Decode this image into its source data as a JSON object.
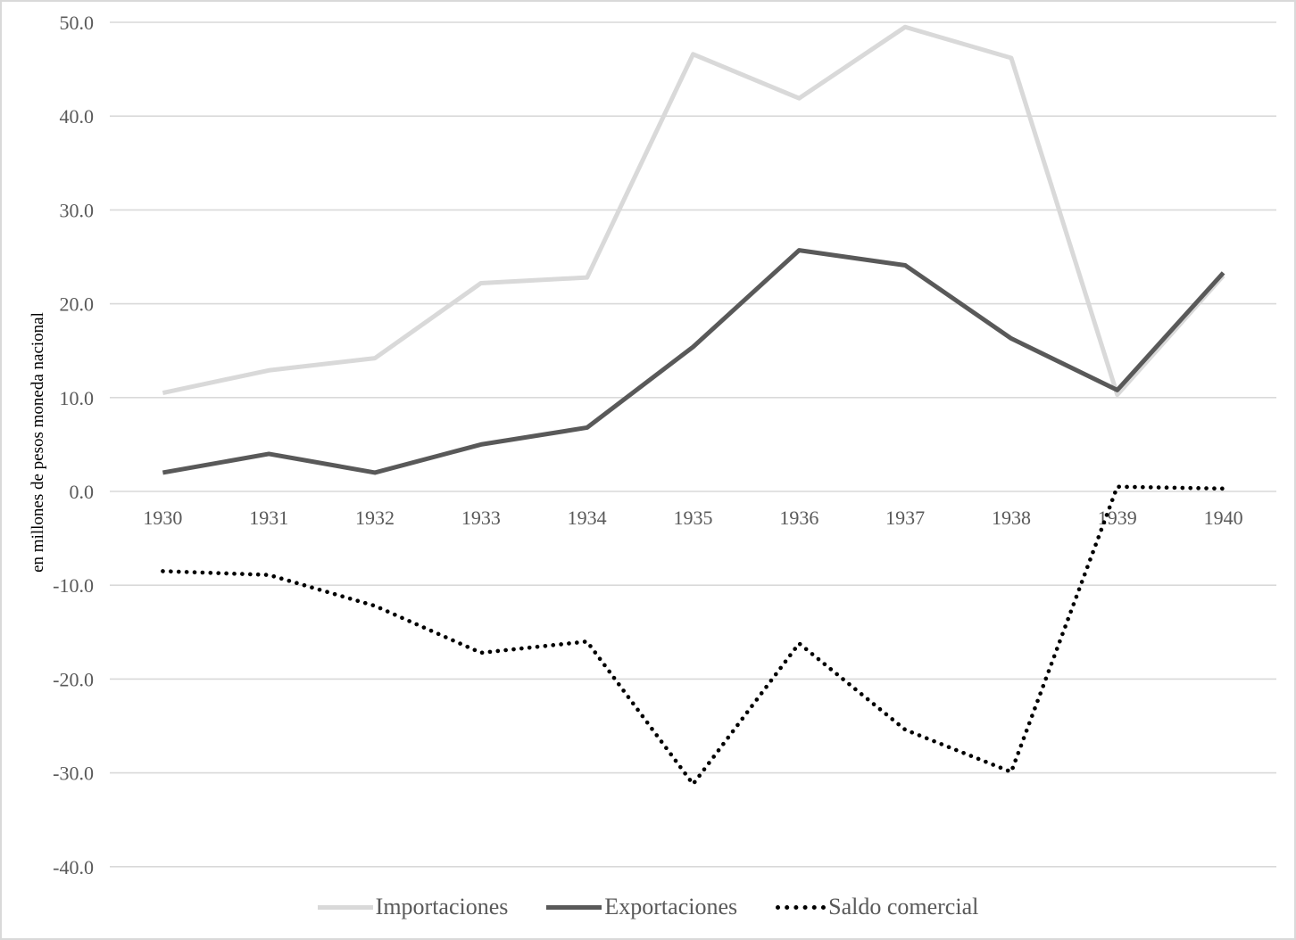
{
  "colors": {
    "background": "#ffffff",
    "figure_border": "#d9d9d9",
    "grid": "#d9d9d9",
    "axis_text": "#595959",
    "legend_text": "#595959",
    "importaciones_line": "#d9d9d9",
    "exportaciones_line": "#595959",
    "saldo_line": "#000000"
  },
  "chart_data": {
    "type": "line",
    "title": "",
    "xlabel": "",
    "ylabel": "en millones de pesos moneda nacional",
    "categories": [
      "1930",
      "1931",
      "1932",
      "1933",
      "1934",
      "1935",
      "1936",
      "1937",
      "1938",
      "1939",
      "1940"
    ],
    "y_axis": {
      "min": -40,
      "max": 50,
      "step": 10,
      "tick_labels": [
        "50.0",
        "40.0",
        "30.0",
        "20.0",
        "10.0",
        "0.0",
        "-10.0",
        "-20.0",
        "-30.0",
        "-40.0"
      ]
    },
    "grid": true,
    "legend_position": "bottom",
    "series": [
      {
        "name": "Importaciones",
        "style": "solid",
        "color": "#d9d9d9",
        "values": [
          10.5,
          12.9,
          14.2,
          22.2,
          22.8,
          46.6,
          41.9,
          49.5,
          46.2,
          10.3,
          23.0
        ]
      },
      {
        "name": "Exportaciones",
        "style": "solid",
        "color": "#595959",
        "values": [
          2.0,
          4.0,
          2.0,
          5.0,
          6.8,
          15.4,
          25.7,
          24.1,
          16.3,
          10.8,
          23.3
        ]
      },
      {
        "name": "Saldo comercial",
        "style": "dotted",
        "color": "#000000",
        "values": [
          -8.5,
          -8.9,
          -12.2,
          -17.2,
          -16.0,
          -31.2,
          -16.2,
          -25.4,
          -29.9,
          0.5,
          0.3
        ]
      }
    ]
  }
}
